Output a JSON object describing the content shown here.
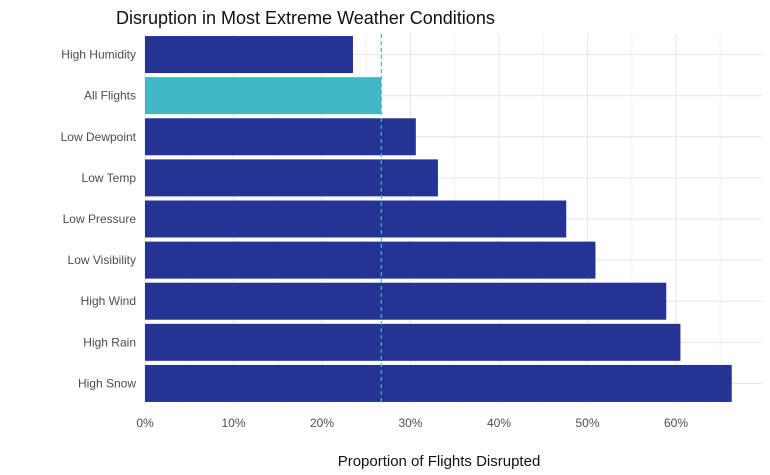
{
  "chart_data": {
    "type": "bar",
    "orientation": "horizontal",
    "title": "Disruption in Most Extreme Weather Conditions",
    "xlabel": "Proportion of Flights Disrupted",
    "ylabel": "",
    "categories": [
      "High Humidity",
      "All Flights",
      "Low Dewpoint",
      "Low Temp",
      "Low Pressure",
      "Low Visibility",
      "High Wind",
      "High Rain",
      "High Snow"
    ],
    "values": [
      0.235,
      0.267,
      0.306,
      0.331,
      0.476,
      0.509,
      0.589,
      0.605,
      0.663
    ],
    "highlight_category": "All Flights",
    "reference_line": {
      "value": 0.267,
      "style": "dashed"
    },
    "xlim": [
      0,
      0.665
    ],
    "x_ticks": [
      0,
      0.1,
      0.2,
      0.3,
      0.4,
      0.5,
      0.6
    ],
    "x_tick_labels": [
      "0%",
      "10%",
      "20%",
      "30%",
      "40%",
      "50%",
      "60%"
    ],
    "grid": true,
    "legend": "none",
    "colors": {
      "bar": "#253494",
      "highlight": "#41b6c4",
      "reference_line": "#41b6c4",
      "grid_major": "#e6e6e6",
      "grid_minor": "#f2f2f2"
    }
  }
}
